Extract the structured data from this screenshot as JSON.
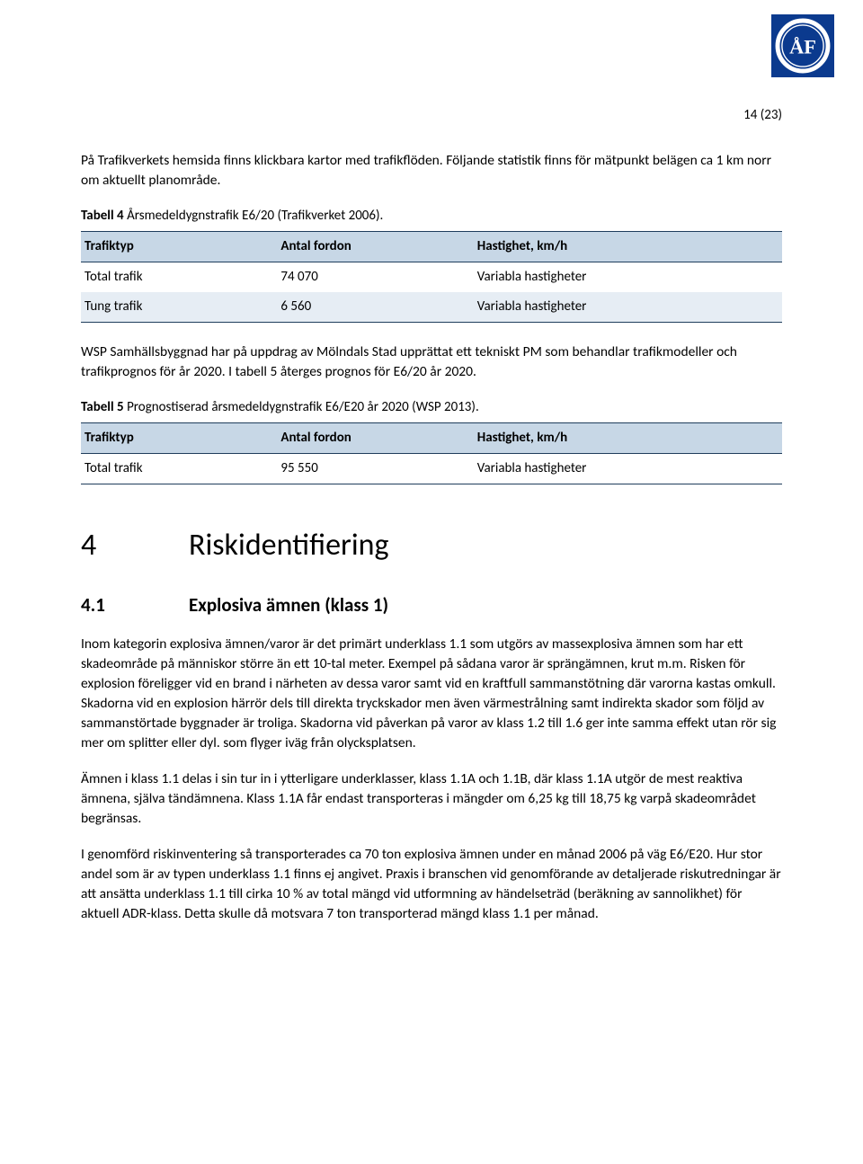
{
  "page_number": "14 (23)",
  "logo": {
    "bg_color": "#0b3a8e",
    "fg_color": "#ffffff",
    "letters": "ÅF"
  },
  "intro_paragraph": "På Trafikverkets hemsida finns klickbara kartor med trafikflöden. Följande statistik finns för mätpunkt belägen ca 1 km norr om aktuellt planområde.",
  "table4": {
    "caption_bold": "Tabell 4",
    "caption_rest": " Årsmedeldygnstrafik E6/20 (Trafikverket 2006).",
    "headers": [
      "Trafiktyp",
      "Antal fordon",
      "Hastighet, km/h"
    ],
    "rows": [
      {
        "cells": [
          "Total trafik",
          "74 070",
          "Variabla hastigheter"
        ],
        "alt": false
      },
      {
        "cells": [
          "Tung trafik",
          "6 560",
          "Variabla hastigheter"
        ],
        "alt": true
      }
    ]
  },
  "mid_paragraph": "WSP Samhällsbyggnad har på uppdrag av Mölndals Stad upprättat ett tekniskt PM som behandlar trafikmodeller och trafikprognos för år 2020. I tabell 5 återges prognos för E6/20 år 2020.",
  "table5": {
    "caption_bold": "Tabell 5",
    "caption_rest": " Prognostiserad årsmedeldygnstrafik E6/E20 år 2020 (WSP 2013).",
    "headers": [
      "Trafiktyp",
      "Antal fordon",
      "Hastighet, km/h"
    ],
    "rows": [
      {
        "cells": [
          "Total trafik",
          "95 550",
          "Variabla hastigheter"
        ],
        "alt": false
      }
    ]
  },
  "section": {
    "num": "4",
    "title": "Riskidentifiering"
  },
  "subsection": {
    "num": "4.1",
    "title": "Explosiva ämnen (klass 1)"
  },
  "body1": "Inom kategorin explosiva ämnen/varor är det primärt underklass 1.1 som utgörs av massexplosiva ämnen som har ett skadeområde på människor större än ett 10-tal meter. Exempel på sådana varor är sprängämnen, krut m.m. Risken för explosion föreligger vid en brand i närheten av dessa varor samt vid en kraftfull sammanstötning där varorna kastas omkull. Skadorna vid en explosion härrör dels till direkta tryckskador men även värmestrålning samt indirekta skador som följd av sammanstörtade byggnader är troliga. Skadorna vid påverkan på varor av klass 1.2 till 1.6 ger inte samma effekt utan rör sig mer om splitter eller dyl. som flyger iväg från olycksplatsen.",
  "body2": "Ämnen i klass 1.1 delas i sin tur in i ytterligare underklasser, klass 1.1A och 1.1B, där klass 1.1A utgör de mest reaktiva ämnena, själva tändämnena. Klass 1.1A får endast transporteras i mängder om 6,25 kg till 18,75 kg varpå skadeområdet begränsas.",
  "body3": "I genomförd riskinventering så transporterades ca 70 ton explosiva ämnen under en månad 2006 på väg E6/E20. Hur stor andel som är av typen underklass 1.1 finns ej angivet. Praxis i branschen vid genomförande av detaljerade riskutredningar är att ansätta underklass 1.1 till cirka 10 % av total mängd vid utformning av händelseträd (beräkning av sannolikhet) för aktuell ADR-klass. Detta skulle då motsvara 7 ton transporterad mängd klass 1.1 per månad."
}
